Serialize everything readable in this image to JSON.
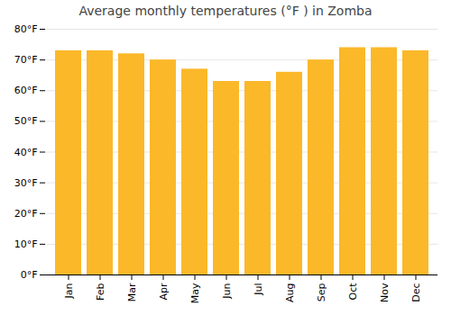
{
  "chart_data": {
    "type": "bar",
    "title": "Average monthly temperatures (°F ) in Zomba",
    "categories": [
      "Jan",
      "Feb",
      "Mar",
      "Apr",
      "May",
      "Jun",
      "Jul",
      "Aug",
      "Sep",
      "Oct",
      "Nov",
      "Dec"
    ],
    "values": [
      73,
      73,
      72,
      70,
      67,
      63,
      63,
      66,
      70,
      74,
      74,
      73
    ],
    "color": "#FBB829",
    "ylim": [
      0,
      80
    ],
    "yticks": [
      {
        "value": 0,
        "label": "0°F"
      },
      {
        "value": 10,
        "label": "10°F"
      },
      {
        "value": 20,
        "label": "20°F"
      },
      {
        "value": 30,
        "label": "30°F"
      },
      {
        "value": 40,
        "label": "40°F"
      },
      {
        "value": 50,
        "label": "50°F"
      },
      {
        "value": 60,
        "label": "60°F"
      },
      {
        "value": 70,
        "label": "70°F"
      },
      {
        "value": 80,
        "label": "80°F"
      }
    ],
    "grid": true
  }
}
